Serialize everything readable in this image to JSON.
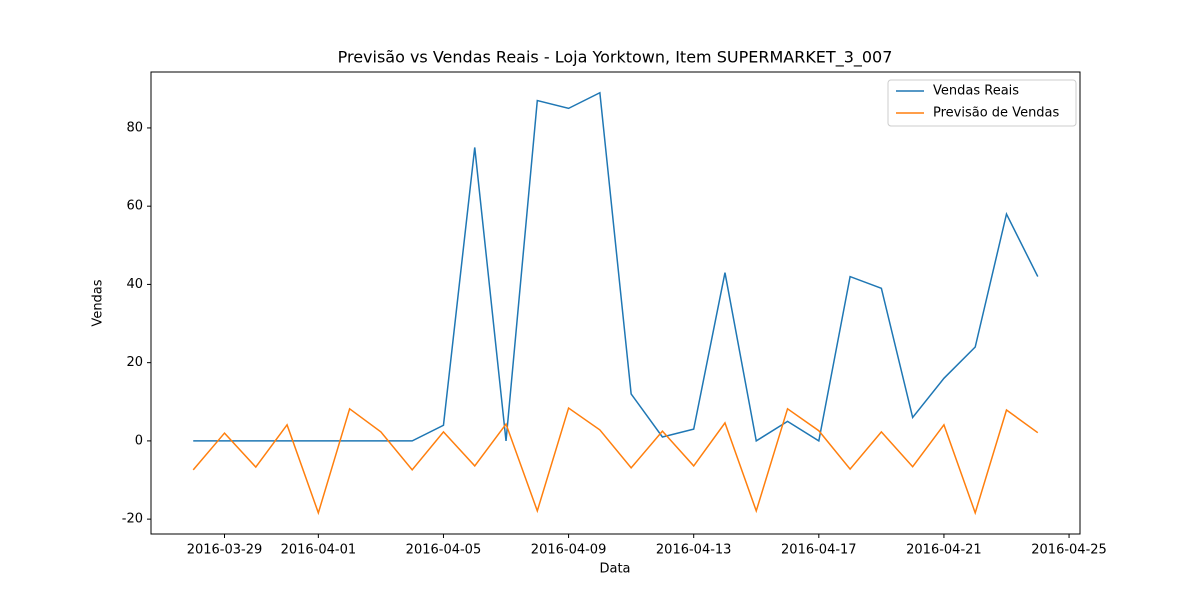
{
  "chart_data": {
    "type": "line",
    "title": "Previsão vs Vendas Reais - Loja Yorktown, Item SUPERMARKET_3_007",
    "x_label": "Data",
    "y_label": "Vendas",
    "x": [
      "2016-03-28",
      "2016-03-29",
      "2016-03-30",
      "2016-03-31",
      "2016-04-01",
      "2016-04-02",
      "2016-04-03",
      "2016-04-04",
      "2016-04-05",
      "2016-04-06",
      "2016-04-07",
      "2016-04-08",
      "2016-04-09",
      "2016-04-10",
      "2016-04-11",
      "2016-04-12",
      "2016-04-13",
      "2016-04-14",
      "2016-04-15",
      "2016-04-16",
      "2016-04-17",
      "2016-04-18",
      "2016-04-19",
      "2016-04-20",
      "2016-04-21",
      "2016-04-22",
      "2016-04-23",
      "2016-04-24"
    ],
    "series": [
      {
        "name": "Vendas Reais",
        "color": "#1f77b4",
        "values": [
          0,
          0,
          0,
          0,
          0,
          0,
          0,
          0,
          4,
          75,
          0,
          87,
          85,
          89,
          12,
          1,
          3,
          43,
          0,
          5,
          0,
          42,
          39,
          6,
          16,
          24,
          58,
          42
        ]
      },
      {
        "name": "Previsão de Vendas",
        "color": "#ff7f0e",
        "values": [
          -7.4,
          2,
          -6.7,
          4.1,
          -18.4,
          8.2,
          2.3,
          -7.4,
          2.3,
          -6.4,
          4.3,
          -17.9,
          8.4,
          2.8,
          -6.9,
          2.5,
          -6.4,
          4.6,
          -17.9,
          8.2,
          2.6,
          -7.2,
          2.3,
          -6.6,
          4.1,
          -18.4,
          7.9,
          2.1
        ]
      }
    ],
    "xlim": [
      "2016-03-26T15:36",
      "2016-04-25T08:24"
    ],
    "xticks": [
      "2016-03-29",
      "2016-04-01",
      "2016-04-05",
      "2016-04-09",
      "2016-04-13",
      "2016-04-17",
      "2016-04-21",
      "2016-04-25"
    ],
    "ylim": [
      -23.8,
      94.3
    ],
    "yticks": [
      -20,
      0,
      20,
      40,
      60,
      80
    ],
    "legend": "upper right"
  }
}
